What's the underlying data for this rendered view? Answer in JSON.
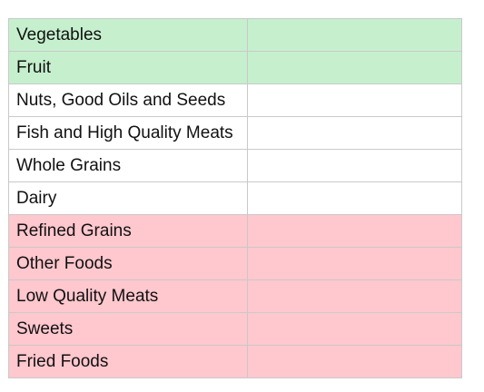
{
  "table": {
    "rows": [
      {
        "label": "Vegetables",
        "value": "",
        "category": "green",
        "color": "#c6efce"
      },
      {
        "label": "Fruit",
        "value": "",
        "category": "green",
        "color": "#c6efce"
      },
      {
        "label": "Nuts, Good Oils and Seeds",
        "value": "",
        "category": "white",
        "color": "#ffffff"
      },
      {
        "label": "Fish and High Quality Meats",
        "value": "",
        "category": "white",
        "color": "#ffffff"
      },
      {
        "label": "Whole Grains",
        "value": "",
        "category": "white",
        "color": "#ffffff"
      },
      {
        "label": "Dairy",
        "value": "",
        "category": "white",
        "color": "#ffffff"
      },
      {
        "label": "Refined Grains",
        "value": "",
        "category": "red",
        "color": "#ffc7ce"
      },
      {
        "label": "Other Foods",
        "value": "",
        "category": "red",
        "color": "#ffc7ce"
      },
      {
        "label": "Low Quality Meats",
        "value": "",
        "category": "red",
        "color": "#ffc7ce"
      },
      {
        "label": "Sweets",
        "value": "",
        "category": "red",
        "color": "#ffc7ce"
      },
      {
        "label": "Fried Foods",
        "value": "",
        "category": "red",
        "color": "#ffc7ce"
      }
    ]
  }
}
